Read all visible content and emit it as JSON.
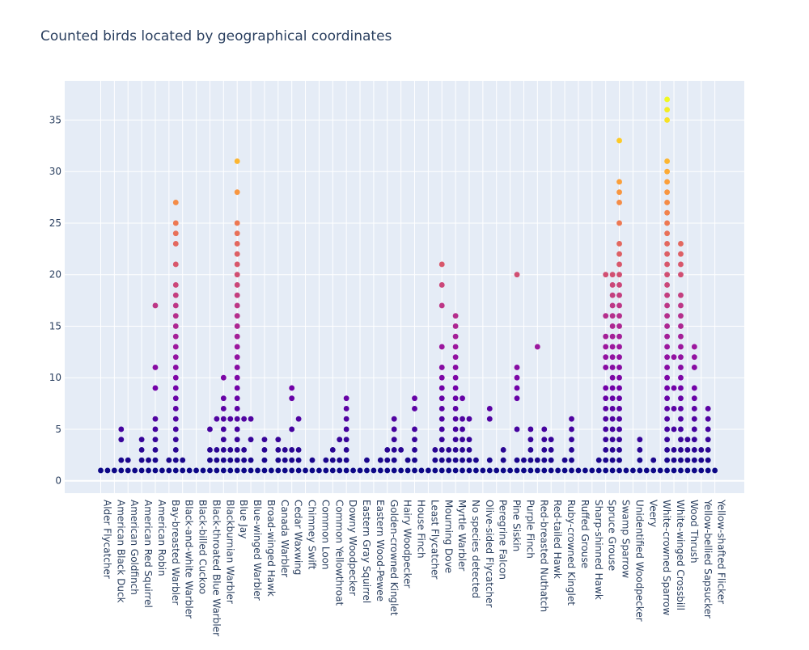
{
  "chart_data": {
    "type": "scatter",
    "title": "Counted birds located by geographical coordinates",
    "xlabel": "",
    "ylabel": "",
    "ylim": [
      -1.2,
      38.8
    ],
    "yticks": [
      0,
      5,
      10,
      15,
      20,
      25,
      30,
      35
    ],
    "grid": true,
    "colorscale": [
      "#0d0887",
      "#46039f",
      "#7201a8",
      "#9c179e",
      "#bd3786",
      "#d8576b",
      "#ed7953",
      "#fb9f3a",
      "#fdca26",
      "#f0f921"
    ],
    "color_range": [
      1,
      37
    ],
    "categories": [
      "Alder Flycatcher",
      "American Black Duck",
      "American Goldfinch",
      "American Red Squirrel",
      "American Robin",
      "Bay-breasted Warbler",
      "Black-and-white Warbler",
      "Black-billed Cuckoo",
      "Black-throated Blue Warbler",
      "Blackburnian Warbler",
      "Blue Jay",
      "Blue-winged Warbler",
      "Broad-winged Hawk",
      "Canada Warbler",
      "Cedar Waxwing",
      "Chimney Swift",
      "Common Loon",
      "Common Yellowthroat",
      "Downy Woodpecker",
      "Eastern Gray Squirrel",
      "Eastern Wood-Pewee",
      "Golden-crowned Kinglet",
      "Hairy Woodpecker",
      "House Finch",
      "Least Flycatcher",
      "Mourning Dove",
      "Myrtle Warbler",
      "No species detected",
      "Olive-sided Flycatcher",
      "Peregrine Falcon",
      "Pine Siskin",
      "Purple Finch",
      "Red-breasted Nuthatch",
      "Red-tailed Hawk",
      "Ruby-crowned Kinglet",
      "Ruffed Grouse",
      "Sharp-shinned Hawk",
      "Spruce Grouse",
      "Swamp Sparrow",
      "Unidentified Woodpecker",
      "Veery",
      "White-crowned Sparrow",
      "White-winged Crossbill",
      "Wood Thrush",
      "Yellow-bellied Sapsucker",
      "Yellow-shafted Flicker"
    ],
    "points": [
      {
        "cat": 0,
        "y": [
          1
        ]
      },
      {
        "cat": 0.5,
        "y": [
          1
        ]
      },
      {
        "cat": 1,
        "y": [
          1
        ]
      },
      {
        "cat": 1.5,
        "y": [
          1,
          2,
          4,
          5
        ]
      },
      {
        "cat": 2,
        "y": [
          1,
          2
        ]
      },
      {
        "cat": 2.5,
        "y": [
          1
        ]
      },
      {
        "cat": 3,
        "y": [
          1,
          2,
          3,
          4
        ]
      },
      {
        "cat": 3.5,
        "y": [
          1,
          2
        ]
      },
      {
        "cat": 4,
        "y": [
          1,
          2,
          3,
          4,
          5,
          6,
          9,
          11,
          17
        ]
      },
      {
        "cat": 4.5,
        "y": [
          1
        ]
      },
      {
        "cat": 5,
        "y": [
          1,
          2
        ]
      },
      {
        "cat": 5.5,
        "y": [
          1,
          2,
          3,
          4,
          5,
          6,
          7,
          8,
          9,
          10,
          11,
          12,
          13,
          14,
          15,
          16,
          17,
          18,
          19,
          21,
          23,
          24,
          25,
          27
        ]
      },
      {
        "cat": 6,
        "y": [
          1,
          2
        ]
      },
      {
        "cat": 6.5,
        "y": [
          1
        ]
      },
      {
        "cat": 7,
        "y": [
          1
        ]
      },
      {
        "cat": 7.5,
        "y": [
          1
        ]
      },
      {
        "cat": 8,
        "y": [
          1,
          2,
          3,
          5
        ]
      },
      {
        "cat": 8.5,
        "y": [
          1,
          2,
          3,
          6
        ]
      },
      {
        "cat": 9,
        "y": [
          1,
          2,
          3,
          4,
          5,
          6,
          7,
          8,
          10
        ]
      },
      {
        "cat": 9.5,
        "y": [
          1,
          2,
          3,
          6
        ]
      },
      {
        "cat": 10,
        "y": [
          1,
          2,
          3,
          4,
          5,
          6,
          7,
          8,
          9,
          10,
          11,
          12,
          13,
          14,
          15,
          16,
          17,
          18,
          19,
          20,
          21,
          22,
          23,
          24,
          25,
          28,
          31
        ]
      },
      {
        "cat": 10.5,
        "y": [
          1,
          2,
          3,
          6
        ]
      },
      {
        "cat": 11,
        "y": [
          1,
          2,
          4,
          6
        ]
      },
      {
        "cat": 11.5,
        "y": [
          1
        ]
      },
      {
        "cat": 12,
        "y": [
          1,
          2,
          3,
          4
        ]
      },
      {
        "cat": 12.5,
        "y": [
          1
        ]
      },
      {
        "cat": 13,
        "y": [
          1,
          2,
          3,
          4
        ]
      },
      {
        "cat": 13.5,
        "y": [
          1,
          2,
          3
        ]
      },
      {
        "cat": 14,
        "y": [
          1,
          2,
          3,
          5,
          8,
          9
        ]
      },
      {
        "cat": 14.5,
        "y": [
          1,
          2,
          3,
          6
        ]
      },
      {
        "cat": 15,
        "y": [
          1
        ]
      },
      {
        "cat": 15.5,
        "y": [
          1,
          2
        ]
      },
      {
        "cat": 16,
        "y": [
          1
        ]
      },
      {
        "cat": 16.5,
        "y": [
          1,
          2
        ]
      },
      {
        "cat": 17,
        "y": [
          1,
          2,
          3
        ]
      },
      {
        "cat": 17.5,
        "y": [
          1,
          2,
          4
        ]
      },
      {
        "cat": 18,
        "y": [
          1,
          2,
          3,
          4,
          5,
          6,
          7,
          8
        ]
      },
      {
        "cat": 18.5,
        "y": [
          1
        ]
      },
      {
        "cat": 19,
        "y": [
          1
        ]
      },
      {
        "cat": 19.5,
        "y": [
          1,
          2
        ]
      },
      {
        "cat": 20,
        "y": [
          1
        ]
      },
      {
        "cat": 20.5,
        "y": [
          1,
          2
        ]
      },
      {
        "cat": 21,
        "y": [
          1,
          2,
          3
        ]
      },
      {
        "cat": 21.5,
        "y": [
          1,
          2,
          3,
          4,
          5,
          6
        ]
      },
      {
        "cat": 22,
        "y": [
          1,
          3
        ]
      },
      {
        "cat": 22.5,
        "y": [
          1,
          2
        ]
      },
      {
        "cat": 23,
        "y": [
          1,
          2,
          3,
          4,
          5,
          7,
          8
        ]
      },
      {
        "cat": 23.5,
        "y": [
          1
        ]
      },
      {
        "cat": 24,
        "y": [
          1
        ]
      },
      {
        "cat": 24.5,
        "y": [
          1,
          2,
          3
        ]
      },
      {
        "cat": 25,
        "y": [
          1,
          2,
          3,
          4,
          5,
          6,
          7,
          8,
          9,
          10,
          11,
          13,
          17,
          19,
          21
        ]
      },
      {
        "cat": 25.5,
        "y": [
          1,
          2,
          3
        ]
      },
      {
        "cat": 26,
        "y": [
          1,
          2,
          3,
          4,
          5,
          6,
          7,
          8,
          9,
          10,
          11,
          12,
          13,
          14,
          15,
          16
        ]
      },
      {
        "cat": 26.5,
        "y": [
          1,
          2,
          3,
          4,
          5,
          6,
          8
        ]
      },
      {
        "cat": 27,
        "y": [
          1,
          2,
          3,
          4,
          6
        ]
      },
      {
        "cat": 27.5,
        "y": [
          1,
          2
        ]
      },
      {
        "cat": 28,
        "y": [
          1
        ]
      },
      {
        "cat": 28.5,
        "y": [
          1,
          2,
          6,
          7
        ]
      },
      {
        "cat": 29,
        "y": [
          1
        ]
      },
      {
        "cat": 29.5,
        "y": [
          1,
          2,
          3
        ]
      },
      {
        "cat": 30,
        "y": [
          1
        ]
      },
      {
        "cat": 30.5,
        "y": [
          1,
          2,
          5,
          8,
          9,
          10,
          11,
          20
        ]
      },
      {
        "cat": 31,
        "y": [
          1,
          2
        ]
      },
      {
        "cat": 31.5,
        "y": [
          1,
          2,
          3,
          4,
          5
        ]
      },
      {
        "cat": 32,
        "y": [
          1,
          2,
          13
        ]
      },
      {
        "cat": 32.5,
        "y": [
          1,
          2,
          3,
          4,
          5
        ]
      },
      {
        "cat": 33,
        "y": [
          1,
          2,
          3,
          4
        ]
      },
      {
        "cat": 33.5,
        "y": [
          1
        ]
      },
      {
        "cat": 34,
        "y": [
          1,
          2
        ]
      },
      {
        "cat": 34.5,
        "y": [
          1,
          2,
          3,
          4,
          5,
          6
        ]
      },
      {
        "cat": 35,
        "y": [
          1
        ]
      },
      {
        "cat": 35.5,
        "y": [
          1
        ]
      },
      {
        "cat": 36,
        "y": [
          1
        ]
      },
      {
        "cat": 36.5,
        "y": [
          1,
          2
        ]
      },
      {
        "cat": 37,
        "y": [
          1,
          2,
          3,
          4,
          5,
          6,
          7,
          8,
          9,
          11,
          12,
          13,
          14,
          16,
          20
        ]
      },
      {
        "cat": 37.5,
        "y": [
          1,
          2,
          3,
          4,
          5,
          6,
          7,
          8,
          9,
          10,
          11,
          12,
          13,
          14,
          15,
          16,
          17,
          18,
          19,
          20
        ]
      },
      {
        "cat": 38,
        "y": [
          1,
          2,
          3,
          4,
          5,
          6,
          7,
          8,
          9,
          10,
          11,
          12,
          13,
          14,
          15,
          16,
          17,
          18,
          19,
          20,
          21,
          22,
          23,
          25,
          27,
          28,
          29,
          33
        ]
      },
      {
        "cat": 38.5,
        "y": [
          1
        ]
      },
      {
        "cat": 39,
        "y": [
          1
        ]
      },
      {
        "cat": 39.5,
        "y": [
          1,
          2,
          3,
          4
        ]
      },
      {
        "cat": 40,
        "y": [
          1
        ]
      },
      {
        "cat": 40.5,
        "y": [
          1,
          2
        ]
      },
      {
        "cat": 41,
        "y": [
          1
        ]
      },
      {
        "cat": 41.5,
        "y": [
          1,
          2,
          3,
          4,
          5,
          6,
          7,
          8,
          9,
          10,
          11,
          12,
          13,
          14,
          15,
          16,
          17,
          18,
          19,
          20,
          21,
          22,
          23,
          24,
          25,
          26,
          27,
          28,
          29,
          30,
          31,
          35,
          36,
          37
        ]
      },
      {
        "cat": 42,
        "y": [
          1,
          2,
          3,
          5,
          7,
          9,
          12
        ]
      },
      {
        "cat": 42.5,
        "y": [
          1,
          2,
          3,
          4,
          5,
          6,
          7,
          8,
          9,
          10,
          11,
          12,
          13,
          14,
          15,
          16,
          17,
          18,
          20,
          21,
          22,
          23
        ]
      },
      {
        "cat": 43,
        "y": [
          1,
          2,
          3,
          4
        ]
      },
      {
        "cat": 43.5,
        "y": [
          1,
          2,
          3,
          4,
          5,
          6,
          7,
          8,
          9,
          11,
          12,
          13
        ]
      },
      {
        "cat": 44,
        "y": [
          1,
          2,
          3
        ]
      },
      {
        "cat": 44.5,
        "y": [
          1,
          2,
          3,
          4,
          5,
          6,
          7
        ]
      },
      {
        "cat": 45,
        "y": [
          1
        ]
      }
    ]
  }
}
